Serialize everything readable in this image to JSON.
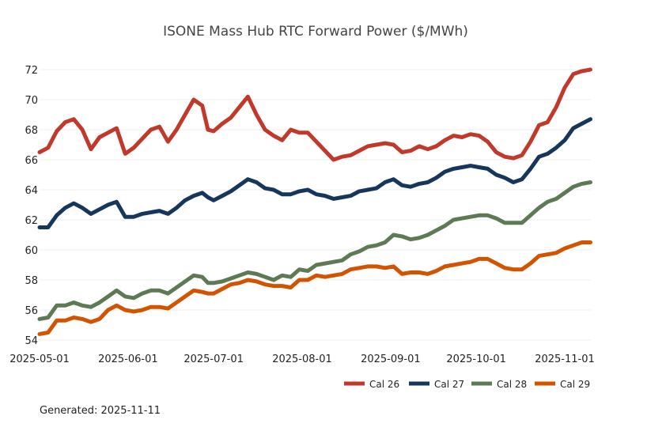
{
  "chart_data": {
    "type": "line",
    "title": "ISONE Mass Hub RTC Forward Power ($/MWh)",
    "xlabel": "",
    "ylabel": "",
    "xlim": [
      "2025-05-01",
      "2025-11-01"
    ],
    "ylim": [
      54,
      72
    ],
    "x_ticks": [
      "2025-05-01",
      "2025-06-01",
      "2025-07-01",
      "2025-08-01",
      "2025-09-01",
      "2025-10-01",
      "2025-11-01"
    ],
    "y_ticks": [
      54,
      56,
      58,
      60,
      62,
      64,
      66,
      68,
      70,
      72
    ],
    "grid": true,
    "legend_placement": "bottom-right",
    "series": [
      {
        "name": "Cal 26",
        "color": "#c0392b",
        "points": [
          [
            "2025-05-01",
            66.5
          ],
          [
            "2025-05-04",
            66.8
          ],
          [
            "2025-05-07",
            67.9
          ],
          [
            "2025-05-10",
            68.5
          ],
          [
            "2025-05-13",
            68.7
          ],
          [
            "2025-05-16",
            68.0
          ],
          [
            "2025-05-19",
            66.7
          ],
          [
            "2025-05-22",
            67.5
          ],
          [
            "2025-05-25",
            67.8
          ],
          [
            "2025-05-28",
            68.1
          ],
          [
            "2025-05-31",
            66.4
          ],
          [
            "2025-06-03",
            66.8
          ],
          [
            "2025-06-06",
            67.4
          ],
          [
            "2025-06-09",
            68.0
          ],
          [
            "2025-06-12",
            68.2
          ],
          [
            "2025-06-15",
            67.2
          ],
          [
            "2025-06-18",
            68.0
          ],
          [
            "2025-06-21",
            69.0
          ],
          [
            "2025-06-24",
            70.0
          ],
          [
            "2025-06-27",
            69.6
          ],
          [
            "2025-06-29",
            68.0
          ],
          [
            "2025-07-01",
            67.9
          ],
          [
            "2025-07-04",
            68.4
          ],
          [
            "2025-07-07",
            68.8
          ],
          [
            "2025-07-10",
            69.5
          ],
          [
            "2025-07-13",
            70.2
          ],
          [
            "2025-07-16",
            69.0
          ],
          [
            "2025-07-19",
            68.0
          ],
          [
            "2025-07-22",
            67.6
          ],
          [
            "2025-07-25",
            67.3
          ],
          [
            "2025-07-28",
            68.0
          ],
          [
            "2025-07-31",
            67.8
          ],
          [
            "2025-08-03",
            67.8
          ],
          [
            "2025-08-06",
            67.2
          ],
          [
            "2025-08-09",
            66.6
          ],
          [
            "2025-08-12",
            66.0
          ],
          [
            "2025-08-15",
            66.2
          ],
          [
            "2025-08-18",
            66.3
          ],
          [
            "2025-08-21",
            66.6
          ],
          [
            "2025-08-24",
            66.9
          ],
          [
            "2025-08-27",
            67.0
          ],
          [
            "2025-08-30",
            67.1
          ],
          [
            "2025-09-02",
            67.0
          ],
          [
            "2025-09-05",
            66.5
          ],
          [
            "2025-09-08",
            66.6
          ],
          [
            "2025-09-11",
            66.9
          ],
          [
            "2025-09-14",
            66.7
          ],
          [
            "2025-09-17",
            66.9
          ],
          [
            "2025-09-20",
            67.3
          ],
          [
            "2025-09-23",
            67.6
          ],
          [
            "2025-09-26",
            67.5
          ],
          [
            "2025-09-29",
            67.7
          ],
          [
            "2025-10-02",
            67.6
          ],
          [
            "2025-10-05",
            67.2
          ],
          [
            "2025-10-08",
            66.5
          ],
          [
            "2025-10-11",
            66.2
          ],
          [
            "2025-10-14",
            66.1
          ],
          [
            "2025-10-17",
            66.3
          ],
          [
            "2025-10-20",
            67.2
          ],
          [
            "2025-10-23",
            68.3
          ],
          [
            "2025-10-26",
            68.5
          ],
          [
            "2025-10-29",
            69.5
          ],
          [
            "2025-11-01",
            70.8
          ],
          [
            "2025-11-04",
            71.7
          ],
          [
            "2025-11-07",
            71.9
          ],
          [
            "2025-11-10",
            72.0
          ]
        ]
      },
      {
        "name": "Cal 27",
        "color": "#17365d",
        "points": [
          [
            "2025-05-01",
            61.5
          ],
          [
            "2025-05-04",
            61.5
          ],
          [
            "2025-05-07",
            62.3
          ],
          [
            "2025-05-10",
            62.8
          ],
          [
            "2025-05-13",
            63.1
          ],
          [
            "2025-05-16",
            62.8
          ],
          [
            "2025-05-19",
            62.4
          ],
          [
            "2025-05-22",
            62.7
          ],
          [
            "2025-05-25",
            63.0
          ],
          [
            "2025-05-28",
            63.2
          ],
          [
            "2025-05-31",
            62.2
          ],
          [
            "2025-06-03",
            62.2
          ],
          [
            "2025-06-06",
            62.4
          ],
          [
            "2025-06-09",
            62.5
          ],
          [
            "2025-06-12",
            62.6
          ],
          [
            "2025-06-15",
            62.4
          ],
          [
            "2025-06-18",
            62.8
          ],
          [
            "2025-06-21",
            63.3
          ],
          [
            "2025-06-24",
            63.6
          ],
          [
            "2025-06-27",
            63.8
          ],
          [
            "2025-06-29",
            63.5
          ],
          [
            "2025-07-01",
            63.3
          ],
          [
            "2025-07-04",
            63.6
          ],
          [
            "2025-07-07",
            63.9
          ],
          [
            "2025-07-10",
            64.3
          ],
          [
            "2025-07-13",
            64.7
          ],
          [
            "2025-07-16",
            64.5
          ],
          [
            "2025-07-19",
            64.1
          ],
          [
            "2025-07-22",
            64.0
          ],
          [
            "2025-07-25",
            63.7
          ],
          [
            "2025-07-28",
            63.7
          ],
          [
            "2025-07-31",
            63.9
          ],
          [
            "2025-08-03",
            64.0
          ],
          [
            "2025-08-06",
            63.7
          ],
          [
            "2025-08-09",
            63.6
          ],
          [
            "2025-08-12",
            63.4
          ],
          [
            "2025-08-15",
            63.5
          ],
          [
            "2025-08-18",
            63.6
          ],
          [
            "2025-08-21",
            63.9
          ],
          [
            "2025-08-24",
            64.0
          ],
          [
            "2025-08-27",
            64.1
          ],
          [
            "2025-08-30",
            64.5
          ],
          [
            "2025-09-02",
            64.7
          ],
          [
            "2025-09-05",
            64.3
          ],
          [
            "2025-09-08",
            64.2
          ],
          [
            "2025-09-11",
            64.4
          ],
          [
            "2025-09-14",
            64.5
          ],
          [
            "2025-09-17",
            64.8
          ],
          [
            "2025-09-20",
            65.2
          ],
          [
            "2025-09-23",
            65.4
          ],
          [
            "2025-09-26",
            65.5
          ],
          [
            "2025-09-29",
            65.6
          ],
          [
            "2025-10-02",
            65.5
          ],
          [
            "2025-10-05",
            65.4
          ],
          [
            "2025-10-08",
            65.0
          ],
          [
            "2025-10-11",
            64.8
          ],
          [
            "2025-10-14",
            64.5
          ],
          [
            "2025-10-17",
            64.7
          ],
          [
            "2025-10-20",
            65.4
          ],
          [
            "2025-10-23",
            66.2
          ],
          [
            "2025-10-26",
            66.4
          ],
          [
            "2025-10-29",
            66.8
          ],
          [
            "2025-11-01",
            67.3
          ],
          [
            "2025-11-04",
            68.1
          ],
          [
            "2025-11-07",
            68.4
          ],
          [
            "2025-11-10",
            68.7
          ]
        ]
      },
      {
        "name": "Cal 28",
        "color": "#5d7a55",
        "points": [
          [
            "2025-05-01",
            55.4
          ],
          [
            "2025-05-04",
            55.5
          ],
          [
            "2025-05-07",
            56.3
          ],
          [
            "2025-05-10",
            56.3
          ],
          [
            "2025-05-13",
            56.5
          ],
          [
            "2025-05-16",
            56.3
          ],
          [
            "2025-05-19",
            56.2
          ],
          [
            "2025-05-22",
            56.5
          ],
          [
            "2025-05-25",
            56.9
          ],
          [
            "2025-05-28",
            57.3
          ],
          [
            "2025-05-31",
            56.9
          ],
          [
            "2025-06-03",
            56.8
          ],
          [
            "2025-06-06",
            57.1
          ],
          [
            "2025-06-09",
            57.3
          ],
          [
            "2025-06-12",
            57.3
          ],
          [
            "2025-06-15",
            57.1
          ],
          [
            "2025-06-18",
            57.5
          ],
          [
            "2025-06-21",
            57.9
          ],
          [
            "2025-06-24",
            58.3
          ],
          [
            "2025-06-27",
            58.2
          ],
          [
            "2025-06-29",
            57.8
          ],
          [
            "2025-07-01",
            57.8
          ],
          [
            "2025-07-04",
            57.9
          ],
          [
            "2025-07-07",
            58.1
          ],
          [
            "2025-07-10",
            58.3
          ],
          [
            "2025-07-13",
            58.5
          ],
          [
            "2025-07-16",
            58.4
          ],
          [
            "2025-07-19",
            58.2
          ],
          [
            "2025-07-22",
            58.0
          ],
          [
            "2025-07-25",
            58.3
          ],
          [
            "2025-07-28",
            58.2
          ],
          [
            "2025-07-31",
            58.7
          ],
          [
            "2025-08-03",
            58.6
          ],
          [
            "2025-08-06",
            59.0
          ],
          [
            "2025-08-09",
            59.1
          ],
          [
            "2025-08-12",
            59.2
          ],
          [
            "2025-08-15",
            59.3
          ],
          [
            "2025-08-18",
            59.7
          ],
          [
            "2025-08-21",
            59.9
          ],
          [
            "2025-08-24",
            60.2
          ],
          [
            "2025-08-27",
            60.3
          ],
          [
            "2025-08-30",
            60.5
          ],
          [
            "2025-09-02",
            61.0
          ],
          [
            "2025-09-05",
            60.9
          ],
          [
            "2025-09-08",
            60.7
          ],
          [
            "2025-09-11",
            60.8
          ],
          [
            "2025-09-14",
            61.0
          ],
          [
            "2025-09-17",
            61.3
          ],
          [
            "2025-09-20",
            61.6
          ],
          [
            "2025-09-23",
            62.0
          ],
          [
            "2025-09-26",
            62.1
          ],
          [
            "2025-09-29",
            62.2
          ],
          [
            "2025-10-02",
            62.3
          ],
          [
            "2025-10-05",
            62.3
          ],
          [
            "2025-10-08",
            62.1
          ],
          [
            "2025-10-11",
            61.8
          ],
          [
            "2025-10-14",
            61.8
          ],
          [
            "2025-10-17",
            61.8
          ],
          [
            "2025-10-20",
            62.3
          ],
          [
            "2025-10-23",
            62.8
          ],
          [
            "2025-10-26",
            63.2
          ],
          [
            "2025-10-29",
            63.4
          ],
          [
            "2025-11-01",
            63.8
          ],
          [
            "2025-11-04",
            64.2
          ],
          [
            "2025-11-07",
            64.4
          ],
          [
            "2025-11-10",
            64.5
          ]
        ]
      },
      {
        "name": "Cal 29",
        "color": "#d35400",
        "points": [
          [
            "2025-05-01",
            54.4
          ],
          [
            "2025-05-04",
            54.5
          ],
          [
            "2025-05-07",
            55.3
          ],
          [
            "2025-05-10",
            55.3
          ],
          [
            "2025-05-13",
            55.5
          ],
          [
            "2025-05-16",
            55.4
          ],
          [
            "2025-05-19",
            55.2
          ],
          [
            "2025-05-22",
            55.4
          ],
          [
            "2025-05-25",
            56.0
          ],
          [
            "2025-05-28",
            56.3
          ],
          [
            "2025-05-31",
            56.0
          ],
          [
            "2025-06-03",
            55.9
          ],
          [
            "2025-06-06",
            56.0
          ],
          [
            "2025-06-09",
            56.2
          ],
          [
            "2025-06-12",
            56.2
          ],
          [
            "2025-06-15",
            56.1
          ],
          [
            "2025-06-18",
            56.5
          ],
          [
            "2025-06-21",
            56.9
          ],
          [
            "2025-06-24",
            57.3
          ],
          [
            "2025-06-27",
            57.2
          ],
          [
            "2025-06-29",
            57.1
          ],
          [
            "2025-07-01",
            57.1
          ],
          [
            "2025-07-04",
            57.4
          ],
          [
            "2025-07-07",
            57.7
          ],
          [
            "2025-07-10",
            57.8
          ],
          [
            "2025-07-13",
            58.0
          ],
          [
            "2025-07-16",
            57.9
          ],
          [
            "2025-07-19",
            57.7
          ],
          [
            "2025-07-22",
            57.6
          ],
          [
            "2025-07-25",
            57.6
          ],
          [
            "2025-07-28",
            57.5
          ],
          [
            "2025-07-31",
            58.0
          ],
          [
            "2025-08-03",
            58.0
          ],
          [
            "2025-08-06",
            58.3
          ],
          [
            "2025-08-09",
            58.2
          ],
          [
            "2025-08-12",
            58.3
          ],
          [
            "2025-08-15",
            58.4
          ],
          [
            "2025-08-18",
            58.7
          ],
          [
            "2025-08-21",
            58.8
          ],
          [
            "2025-08-24",
            58.9
          ],
          [
            "2025-08-27",
            58.9
          ],
          [
            "2025-08-30",
            58.8
          ],
          [
            "2025-09-02",
            58.9
          ],
          [
            "2025-09-05",
            58.4
          ],
          [
            "2025-09-08",
            58.5
          ],
          [
            "2025-09-11",
            58.5
          ],
          [
            "2025-09-14",
            58.4
          ],
          [
            "2025-09-17",
            58.6
          ],
          [
            "2025-09-20",
            58.9
          ],
          [
            "2025-09-23",
            59.0
          ],
          [
            "2025-09-26",
            59.1
          ],
          [
            "2025-09-29",
            59.2
          ],
          [
            "2025-10-02",
            59.4
          ],
          [
            "2025-10-05",
            59.4
          ],
          [
            "2025-10-08",
            59.1
          ],
          [
            "2025-10-11",
            58.8
          ],
          [
            "2025-10-14",
            58.7
          ],
          [
            "2025-10-17",
            58.7
          ],
          [
            "2025-10-20",
            59.1
          ],
          [
            "2025-10-23",
            59.6
          ],
          [
            "2025-10-26",
            59.7
          ],
          [
            "2025-10-29",
            59.8
          ],
          [
            "2025-11-01",
            60.1
          ],
          [
            "2025-11-04",
            60.3
          ],
          [
            "2025-11-07",
            60.5
          ],
          [
            "2025-11-10",
            60.5
          ]
        ]
      }
    ]
  },
  "footer": {
    "generated": "Generated: 2025-11-11"
  }
}
